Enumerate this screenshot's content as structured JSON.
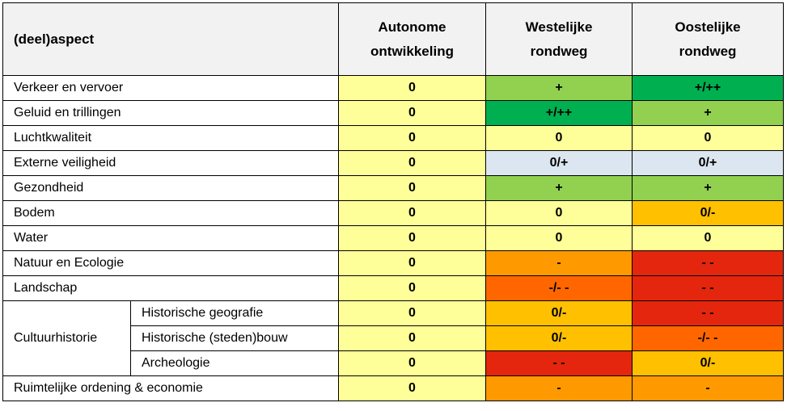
{
  "colors": {
    "neutral": "#ffff99",
    "positive": "#92d050",
    "strong_positive": "#00b050",
    "neutral_positive": "#dce6f0",
    "neutral_negative": "#ffc000",
    "negative": "#ff9900",
    "negative_very_negative": "#ff6600",
    "very_negative": "#e3260d",
    "header": "#f2f2f2"
  },
  "header": {
    "aspect": "(deel)aspect",
    "columns": [
      [
        "Autonome",
        "ontwikkeling"
      ],
      [
        "Westelijke",
        "rondweg"
      ],
      [
        "Oostelijke",
        "rondweg"
      ]
    ]
  },
  "rows": [
    {
      "label": "Verkeer en vervoer",
      "values": [
        "0",
        "+",
        "+/++"
      ],
      "colors": [
        "neutral",
        "positive",
        "strong_positive"
      ]
    },
    {
      "label": "Geluid en trillingen",
      "values": [
        "0",
        "+/++",
        "+"
      ],
      "colors": [
        "neutral",
        "strong_positive",
        "positive"
      ]
    },
    {
      "label": "Luchtkwaliteit",
      "values": [
        "0",
        "0",
        "0"
      ],
      "colors": [
        "neutral",
        "neutral",
        "neutral"
      ]
    },
    {
      "label": "Externe veiligheid",
      "values": [
        "0",
        "0/+",
        "0/+"
      ],
      "colors": [
        "neutral",
        "neutral_positive",
        "neutral_positive"
      ]
    },
    {
      "label": "Gezondheid",
      "values": [
        "0",
        "+",
        "+"
      ],
      "colors": [
        "neutral",
        "positive",
        "positive"
      ]
    },
    {
      "label": "Bodem",
      "values": [
        "0",
        "0",
        "0/-"
      ],
      "colors": [
        "neutral",
        "neutral",
        "neutral_negative"
      ]
    },
    {
      "label": "Water",
      "values": [
        "0",
        "0",
        "0"
      ],
      "colors": [
        "neutral",
        "neutral",
        "neutral"
      ]
    },
    {
      "label": "Natuur en Ecologie",
      "values": [
        "0",
        "-",
        "- -"
      ],
      "colors": [
        "neutral",
        "negative",
        "very_negative"
      ]
    },
    {
      "label": "Landschap",
      "values": [
        "0",
        "-/- -",
        "- -"
      ],
      "colors": [
        "neutral",
        "negative_very_negative",
        "very_negative"
      ]
    }
  ],
  "group": {
    "label": "Cultuurhistorie",
    "subrows": [
      {
        "label": "Historische geografie",
        "values": [
          "0",
          "0/-",
          "- -"
        ],
        "colors": [
          "neutral",
          "neutral_negative",
          "very_negative"
        ]
      },
      {
        "label": "Historische (steden)bouw",
        "values": [
          "0",
          "0/-",
          "-/- -"
        ],
        "colors": [
          "neutral",
          "neutral_negative",
          "negative_very_negative"
        ]
      },
      {
        "label": "Archeologie",
        "values": [
          "0",
          "- -",
          "0/-"
        ],
        "colors": [
          "neutral",
          "very_negative",
          "neutral_negative"
        ]
      }
    ]
  },
  "last_row": {
    "label": "Ruimtelijke ordening & economie",
    "values": [
      "0",
      "-",
      "-"
    ],
    "colors": [
      "neutral",
      "negative",
      "negative"
    ]
  }
}
